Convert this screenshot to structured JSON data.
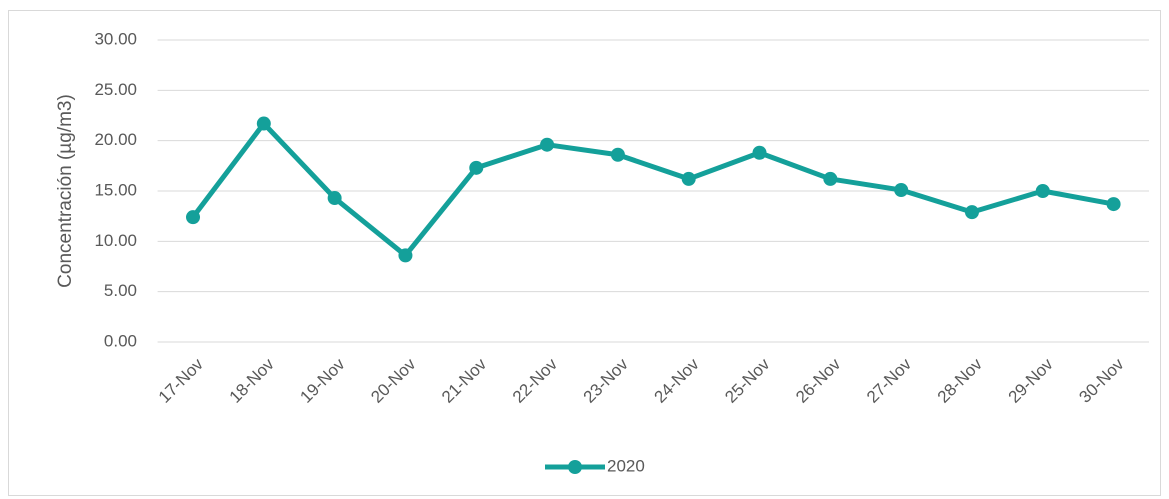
{
  "chart_data": {
    "type": "line",
    "ylabel": "Concentración (µg/m3)",
    "categories": [
      "17-Nov",
      "18-Nov",
      "19-Nov",
      "20-Nov",
      "21-Nov",
      "22-Nov",
      "23-Nov",
      "24-Nov",
      "25-Nov",
      "26-Nov",
      "27-Nov",
      "28-Nov",
      "29-Nov",
      "30-Nov"
    ],
    "series": [
      {
        "name": "2020",
        "color": "#14a09a",
        "values": [
          12.4,
          21.7,
          14.3,
          8.6,
          17.3,
          19.6,
          18.6,
          16.2,
          18.8,
          16.2,
          15.1,
          12.9,
          15.0,
          13.7
        ]
      }
    ],
    "ylim": [
      0,
      30
    ],
    "yticks": [
      {
        "value": 0,
        "label": "0.00"
      },
      {
        "value": 5,
        "label": "5.00"
      },
      {
        "value": 10,
        "label": "10.00"
      },
      {
        "value": 15,
        "label": "15.00"
      },
      {
        "value": 20,
        "label": "20.00"
      },
      {
        "value": 25,
        "label": "25.00"
      },
      {
        "value": 30,
        "label": "30.00"
      }
    ],
    "grid": true,
    "legend": "bottom"
  }
}
